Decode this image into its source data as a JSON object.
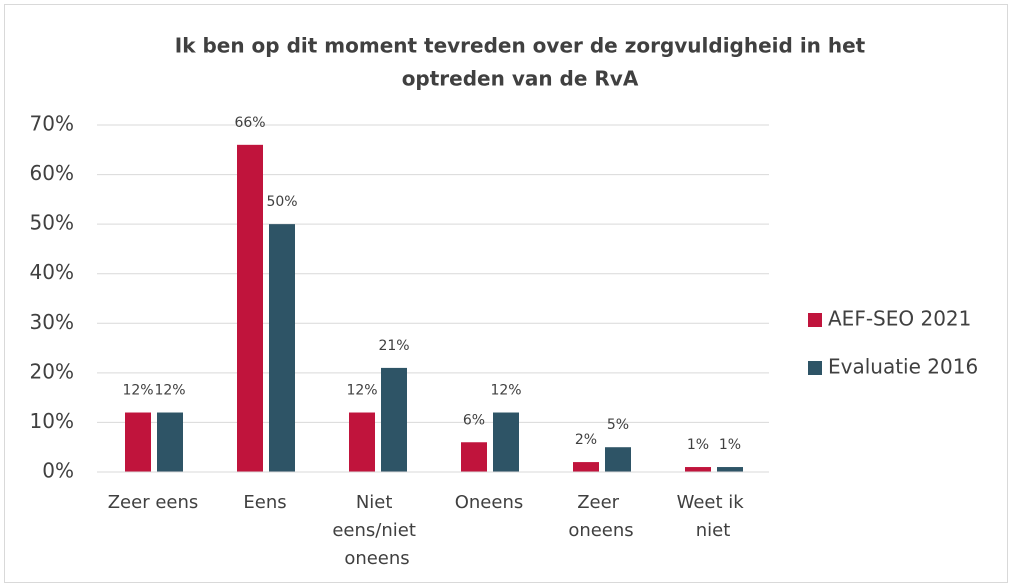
{
  "chart_data": {
    "type": "bar",
    "title": [
      "Ik ben op dit moment tevreden over de zorgvuldigheid in het",
      "optreden van de RvA"
    ],
    "categories": [
      "Zeer eens",
      "Eens",
      "Niet eens/niet oneens",
      "Oneens",
      "Zeer oneens",
      "Weet ik niet"
    ],
    "series": [
      {
        "name": "AEF-SEO 2021",
        "color": "#c0143c",
        "values": [
          12,
          66,
          12,
          6,
          2,
          1
        ],
        "value_labels": [
          "12%",
          "66%",
          "12%",
          "6%",
          "2%",
          "1%"
        ]
      },
      {
        "name": "Evaluatie 2016",
        "color": "#2e5466",
        "values": [
          12,
          50,
          21,
          12,
          5,
          1
        ],
        "value_labels": [
          "12%",
          "50%",
          "21%",
          "12%",
          "5%",
          "1%"
        ]
      }
    ],
    "ylim": [
      0,
      70
    ],
    "yticks": [
      {
        "value": 0,
        "label": "0%"
      },
      {
        "value": 10,
        "label": "10%"
      },
      {
        "value": 20,
        "label": "20%"
      },
      {
        "value": 30,
        "label": "30%"
      },
      {
        "value": 40,
        "label": "40%"
      },
      {
        "value": 50,
        "label": "50%"
      },
      {
        "value": 60,
        "label": "60%"
      },
      {
        "value": 70,
        "label": "70%"
      }
    ],
    "grid": true,
    "legend": "right"
  }
}
